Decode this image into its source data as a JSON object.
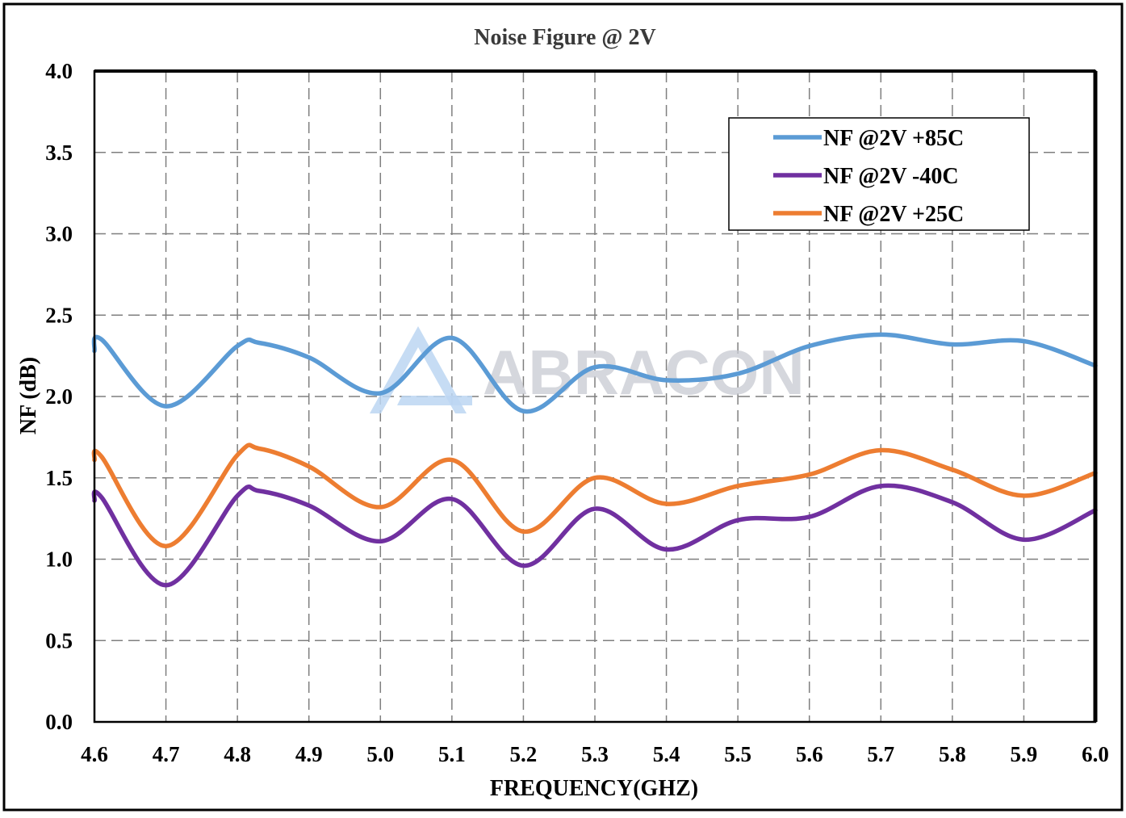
{
  "chart_data": {
    "type": "line",
    "title": "Noise Figure @ 2V",
    "xlabel": "FREQUENCY(GHZ)",
    "ylabel": "NF (dB)",
    "xlim": [
      4.6,
      6.0
    ],
    "ylim": [
      0.0,
      4.0
    ],
    "x_ticks": [
      "4.6",
      "4.7",
      "4.8",
      "4.9",
      "5.0",
      "5.1",
      "5.2",
      "5.3",
      "5.4",
      "5.5",
      "5.6",
      "5.7",
      "5.8",
      "5.9",
      "6.0"
    ],
    "y_ticks": [
      "0.0",
      "0.5",
      "1.0",
      "1.5",
      "2.0",
      "2.5",
      "3.0",
      "3.5",
      "4.0"
    ],
    "grid": true,
    "legend_position": "top-right",
    "watermark": "ABRACON",
    "series": [
      {
        "name": "NF @2V +85C",
        "color": "#5B9BD5",
        "x": [
          4.6,
          4.61,
          4.7,
          4.8,
          4.83,
          4.9,
          5.0,
          5.1,
          5.2,
          5.3,
          5.4,
          5.5,
          5.6,
          5.7,
          5.8,
          5.9,
          6.0
        ],
        "y": [
          2.28,
          2.35,
          1.94,
          2.31,
          2.33,
          2.24,
          2.02,
          2.36,
          1.91,
          2.18,
          2.1,
          2.14,
          2.31,
          2.38,
          2.32,
          2.34,
          2.19
        ]
      },
      {
        "name": "NF @2V -40C",
        "color": "#7030A0",
        "x": [
          4.6,
          4.61,
          4.7,
          4.8,
          4.83,
          4.9,
          5.0,
          5.1,
          5.2,
          5.3,
          5.4,
          5.5,
          5.6,
          5.7,
          5.8,
          5.9,
          6.0
        ],
        "y": [
          1.36,
          1.38,
          0.84,
          1.39,
          1.42,
          1.33,
          1.11,
          1.37,
          0.96,
          1.31,
          1.06,
          1.24,
          1.26,
          1.45,
          1.35,
          1.12,
          1.3
        ]
      },
      {
        "name": "NF @2V +25C",
        "color": "#ED7D31",
        "x": [
          4.6,
          4.61,
          4.7,
          4.8,
          4.83,
          4.9,
          5.0,
          5.1,
          5.2,
          5.3,
          5.4,
          5.5,
          5.6,
          5.7,
          5.8,
          5.9,
          6.0
        ],
        "y": [
          1.61,
          1.63,
          1.08,
          1.64,
          1.68,
          1.57,
          1.32,
          1.61,
          1.17,
          1.5,
          1.34,
          1.45,
          1.52,
          1.67,
          1.55,
          1.39,
          1.53
        ]
      }
    ]
  }
}
